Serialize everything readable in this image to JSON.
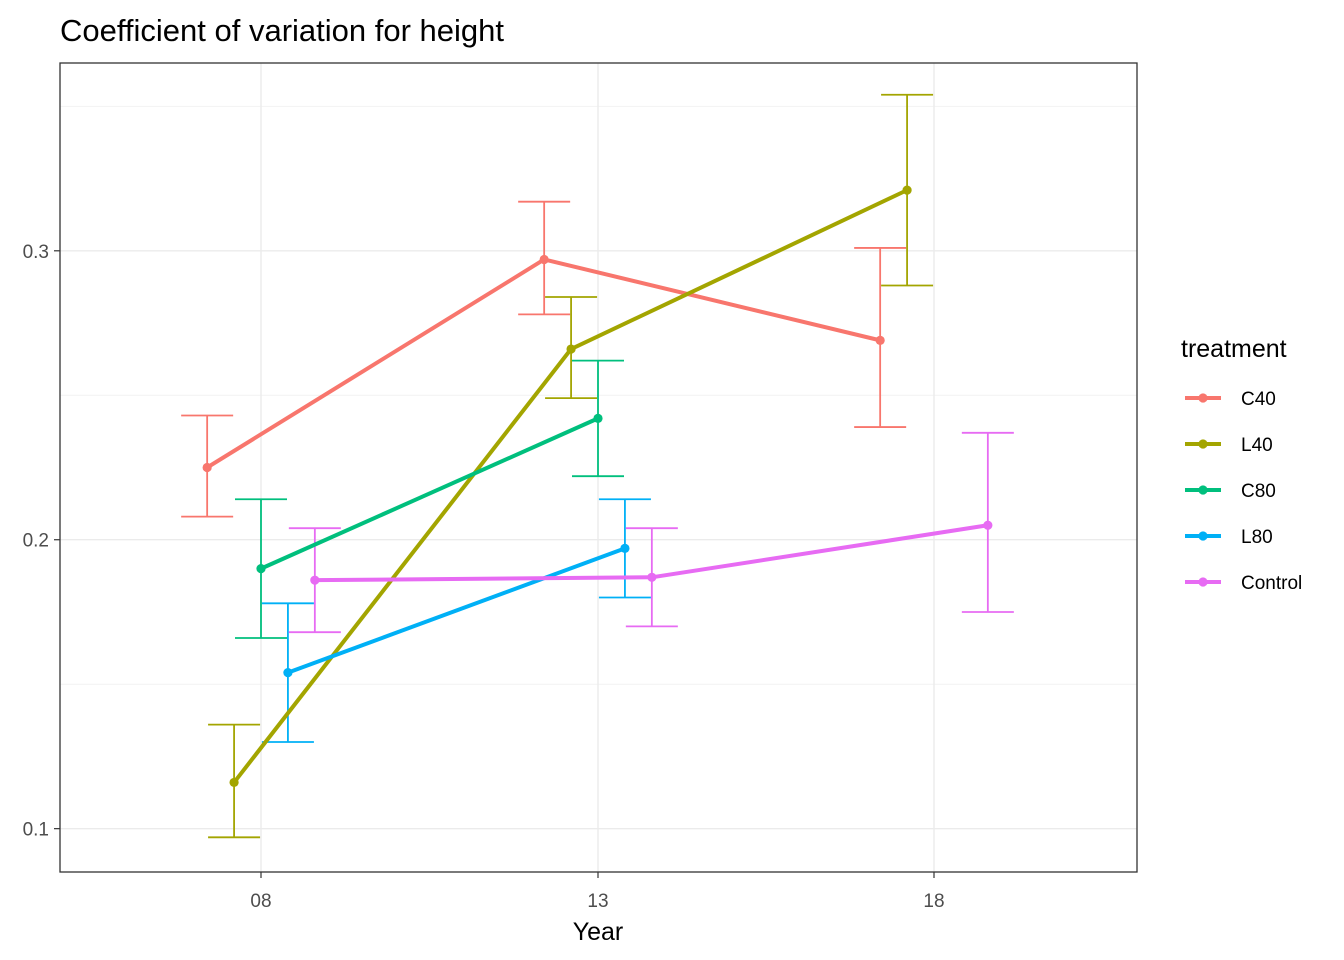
{
  "chart_data": {
    "type": "line",
    "title": "Coefficient of variation for height",
    "xlabel": "Year",
    "ylabel": "",
    "categories": [
      "08",
      "13",
      "18"
    ],
    "ylim": [
      0.085,
      0.365
    ],
    "yticks": [
      0.1,
      0.2,
      0.3
    ],
    "ytick_labels": [
      "0.1",
      "0.2",
      "0.3"
    ],
    "grid": true,
    "legend": {
      "title": "treatment",
      "position": "right"
    },
    "series": [
      {
        "name": "C40",
        "color": "#F8766D",
        "dodge": -0.4,
        "points": [
          {
            "x": "08",
            "y": 0.225,
            "lower": 0.208,
            "upper": 0.243
          },
          {
            "x": "13",
            "y": 0.297,
            "lower": 0.278,
            "upper": 0.317
          },
          {
            "x": "18",
            "y": 0.269,
            "lower": 0.239,
            "upper": 0.301
          }
        ]
      },
      {
        "name": "L40",
        "color": "#A3A500",
        "dodge": -0.2,
        "points": [
          {
            "x": "08",
            "y": 0.116,
            "lower": 0.097,
            "upper": 0.136
          },
          {
            "x": "13",
            "y": 0.266,
            "lower": 0.249,
            "upper": 0.284
          },
          {
            "x": "18",
            "y": 0.321,
            "lower": 0.288,
            "upper": 0.354
          }
        ]
      },
      {
        "name": "C80",
        "color": "#00BF7D",
        "dodge": 0.0,
        "points": [
          {
            "x": "08",
            "y": 0.19,
            "lower": 0.166,
            "upper": 0.214
          },
          {
            "x": "13",
            "y": 0.242,
            "lower": 0.222,
            "upper": 0.262
          }
        ]
      },
      {
        "name": "L80",
        "color": "#00B0F6",
        "dodge": 0.2,
        "points": [
          {
            "x": "08",
            "y": 0.154,
            "lower": 0.13,
            "upper": 0.178
          },
          {
            "x": "13",
            "y": 0.197,
            "lower": 0.18,
            "upper": 0.214
          }
        ]
      },
      {
        "name": "Control",
        "color": "#E76BF3",
        "dodge": 0.4,
        "points": [
          {
            "x": "08",
            "y": 0.186,
            "lower": 0.168,
            "upper": 0.204
          },
          {
            "x": "13",
            "y": 0.187,
            "lower": 0.17,
            "upper": 0.204
          },
          {
            "x": "18",
            "y": 0.205,
            "lower": 0.175,
            "upper": 0.237
          }
        ]
      }
    ]
  }
}
